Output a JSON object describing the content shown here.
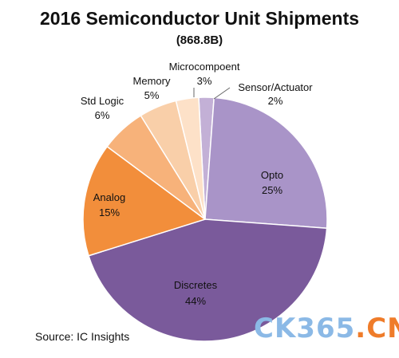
{
  "chart_data": {
    "type": "pie",
    "title": "2016 Semiconductor Unit Shipments",
    "subtitle": "(868.8B)",
    "source": "Source:  IC Insights",
    "slices": [
      {
        "name": "Sensor/Actuator",
        "value": 2,
        "percent_label": "2%",
        "color": "#c3b0d6"
      },
      {
        "name": "Opto",
        "value": 25,
        "percent_label": "25%",
        "color": "#a994c8"
      },
      {
        "name": "Discretes",
        "value": 44,
        "percent_label": "44%",
        "color": "#7a5a9b"
      },
      {
        "name": "Analog",
        "value": 15,
        "percent_label": "15%",
        "color": "#f28e3b"
      },
      {
        "name": "Std Logic",
        "value": 6,
        "percent_label": "6%",
        "color": "#f7b27a"
      },
      {
        "name": "Memory",
        "value": 5,
        "percent_label": "5%",
        "color": "#f9cfa9"
      },
      {
        "name": "Microcompoent",
        "value": 3,
        "percent_label": "3%",
        "color": "#fde1c8"
      }
    ]
  },
  "watermark": {
    "part1": "CK365",
    "part2": ".CN"
  }
}
